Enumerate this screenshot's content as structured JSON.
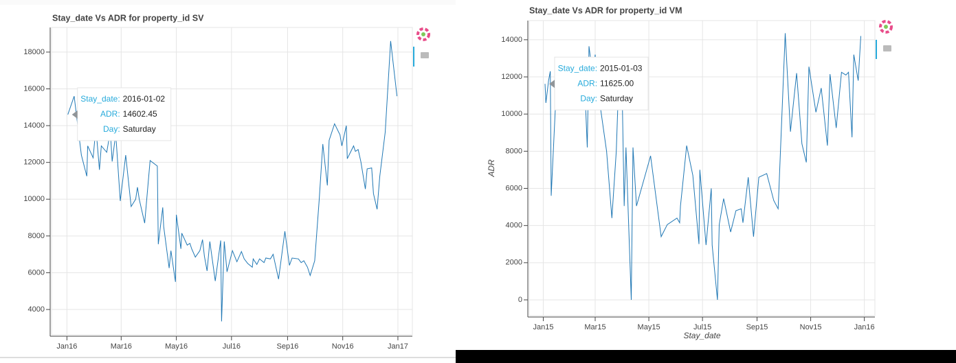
{
  "chart_data": [
    {
      "type": "line",
      "title": "Stay_date Vs ADR for property_id SV",
      "color": "#1f77b4",
      "grid": true,
      "x": [
        "2016-01-02",
        "2016-01-09",
        "2016-01-17",
        "2016-01-23",
        "2016-01-24",
        "2016-01-30",
        "2016-02-02",
        "2016-02-06",
        "2016-02-08",
        "2016-02-14",
        "2016-02-18",
        "2016-02-20",
        "2016-02-24",
        "2016-02-29",
        "2016-03-06",
        "2016-03-12",
        "2016-03-17",
        "2016-03-19",
        "2016-03-21",
        "2016-03-27",
        "2016-04-02",
        "2016-04-10",
        "2016-04-11",
        "2016-04-16",
        "2016-04-17",
        "2016-04-23",
        "2016-04-25",
        "2016-04-30",
        "2016-05-01",
        "2016-05-06",
        "2016-05-07",
        "2016-05-13",
        "2016-05-16",
        "2016-05-18",
        "2016-05-22",
        "2016-05-27",
        "2016-05-30",
        "2016-06-01",
        "2016-06-04",
        "2016-06-07",
        "2016-06-13",
        "2016-06-19",
        "2016-06-20",
        "2016-06-23",
        "2016-06-26",
        "2016-07-02",
        "2016-07-07",
        "2016-07-12",
        "2016-07-15",
        "2016-07-19",
        "2016-07-24",
        "2016-07-25",
        "2016-07-29",
        "2016-08-01",
        "2016-08-06",
        "2016-08-08",
        "2016-08-13",
        "2016-08-16",
        "2016-08-22",
        "2016-08-29",
        "2016-09-03",
        "2016-09-06",
        "2016-09-13",
        "2016-09-16",
        "2016-09-19",
        "2016-09-23",
        "2016-09-26",
        "2016-10-01",
        "2016-10-06",
        "2016-10-10",
        "2016-10-15",
        "2016-10-17",
        "2016-10-23",
        "2016-10-29",
        "2016-10-31",
        "2016-11-05",
        "2016-11-06",
        "2016-11-13",
        "2016-11-15",
        "2016-11-18",
        "2016-11-21",
        "2016-11-26",
        "2016-11-28",
        "2016-12-03",
        "2016-12-05",
        "2016-12-09",
        "2016-12-12",
        "2016-12-18",
        "2016-12-24",
        "2016-12-31"
      ],
      "values": [
        14602.45,
        15600,
        12400,
        11250,
        12900,
        12250,
        13900,
        11600,
        12900,
        12550,
        13700,
        12050,
        13550,
        9900,
        12400,
        9600,
        10000,
        10650,
        10000,
        8700,
        12100,
        11800,
        7550,
        9550,
        8500,
        6250,
        7200,
        5500,
        9150,
        7300,
        8150,
        7500,
        7600,
        7300,
        6850,
        7200,
        7800,
        6900,
        6100,
        7700,
        5550,
        7750,
        3350,
        7700,
        6050,
        7200,
        6600,
        7150,
        6750,
        6500,
        6300,
        6750,
        6450,
        6750,
        6550,
        6800,
        6750,
        7000,
        5650,
        8250,
        6400,
        6800,
        6750,
        6550,
        6650,
        6300,
        5850,
        6650,
        10000,
        13000,
        10750,
        13200,
        14100,
        13500,
        12900,
        14000,
        12200,
        12900,
        12600,
        12700,
        12050,
        10550,
        11650,
        11700,
        10300,
        9450,
        11250,
        13650,
        18600,
        15600
      ],
      "xlim": [
        "2015-12-15",
        "2017-01-17"
      ],
      "ylim": [
        2620,
        19340
      ],
      "xticks": [
        {
          "value": "2016-01-01",
          "label": "Jan16"
        },
        {
          "value": "2016-03-01",
          "label": "Mar16"
        },
        {
          "value": "2016-05-01",
          "label": "May16"
        },
        {
          "value": "2016-07-01",
          "label": "Jul16"
        },
        {
          "value": "2016-09-01",
          "label": "Sep16"
        },
        {
          "value": "2016-11-01",
          "label": "Nov16"
        },
        {
          "value": "2017-01-01",
          "label": "Jan17"
        }
      ],
      "yticks": [
        4000,
        6000,
        8000,
        10000,
        12000,
        14000,
        16000,
        18000
      ],
      "tooltip": {
        "labels": [
          "Stay_date:",
          "ADR:",
          "Day:"
        ],
        "values": [
          "2016-01-02",
          "14602.45",
          "Saturday"
        ]
      }
    },
    {
      "type": "line",
      "title": "Stay_date Vs ADR for property_id VM",
      "x_label": "Stay_date",
      "y_label": "ADR",
      "color": "#1f77b4",
      "grid": true,
      "x": [
        "2015-01-03",
        "2015-01-04",
        "2015-01-07",
        "2015-01-09",
        "2015-01-10",
        "2015-01-15",
        "2015-01-18",
        "2015-02-17",
        "2015-02-20",
        "2015-02-22",
        "2015-02-26",
        "2015-03-01",
        "2015-03-04",
        "2015-03-14",
        "2015-03-20",
        "2015-03-25",
        "2015-03-28",
        "2015-04-01",
        "2015-04-03",
        "2015-04-05",
        "2015-04-11",
        "2015-04-13",
        "2015-04-17",
        "2015-04-28",
        "2015-05-03",
        "2015-05-15",
        "2015-05-22",
        "2015-06-02",
        "2015-06-05",
        "2015-06-06",
        "2015-06-13",
        "2015-06-20",
        "2015-06-27",
        "2015-06-28",
        "2015-07-05",
        "2015-07-11",
        "2015-07-12",
        "2015-07-18",
        "2015-07-20",
        "2015-07-25",
        "2015-08-02",
        "2015-08-08",
        "2015-08-14",
        "2015-08-16",
        "2015-08-22",
        "2015-08-28",
        "2015-09-03",
        "2015-09-12",
        "2015-09-20",
        "2015-09-25",
        "2015-10-03",
        "2015-10-09",
        "2015-10-16",
        "2015-10-22",
        "2015-10-27",
        "2015-10-30",
        "2015-11-07",
        "2015-11-13",
        "2015-11-20",
        "2015-11-23",
        "2015-11-30",
        "2015-12-06",
        "2015-12-11",
        "2015-12-14",
        "2015-12-18",
        "2015-12-20",
        "2015-12-25",
        "2015-12-28"
      ],
      "values": [
        11625.0,
        10600,
        11800,
        12300,
        5600,
        10600,
        11700,
        11700,
        8200,
        13650,
        12100,
        13200,
        11350,
        8000,
        4400,
        8000,
        12100,
        10250,
        5050,
        8200,
        0,
        8200,
        5050,
        6900,
        7750,
        3400,
        4050,
        4400,
        4150,
        5050,
        8300,
        6700,
        3000,
        7000,
        2950,
        6000,
        2950,
        0,
        4050,
        5450,
        3650,
        4800,
        4900,
        4150,
        6600,
        3400,
        6600,
        6800,
        5350,
        4900,
        14350,
        9050,
        12200,
        8400,
        7400,
        12550,
        10100,
        11400,
        8300,
        12150,
        9250,
        12250,
        12100,
        12250,
        8750,
        13200,
        11800,
        14200
      ],
      "xlim": [
        "2014-12-16",
        "2016-01-13"
      ],
      "ylim": [
        -850,
        15030
      ],
      "xticks": [
        {
          "value": "2015-01-01",
          "label": "Jan15"
        },
        {
          "value": "2015-03-01",
          "label": "Mar15"
        },
        {
          "value": "2015-05-01",
          "label": "May15"
        },
        {
          "value": "2015-07-01",
          "label": "Jul15"
        },
        {
          "value": "2015-09-01",
          "label": "Sep15"
        },
        {
          "value": "2015-11-01",
          "label": "Nov15"
        },
        {
          "value": "2016-01-01",
          "label": "Jan16"
        }
      ],
      "yticks": [
        0,
        2000,
        4000,
        6000,
        8000,
        10000,
        12000,
        14000
      ],
      "tooltip": {
        "labels": [
          "Stay_date:",
          "ADR:",
          "Day:"
        ],
        "values": [
          "2015-01-03",
          "11625.00",
          "Saturday"
        ]
      }
    }
  ]
}
